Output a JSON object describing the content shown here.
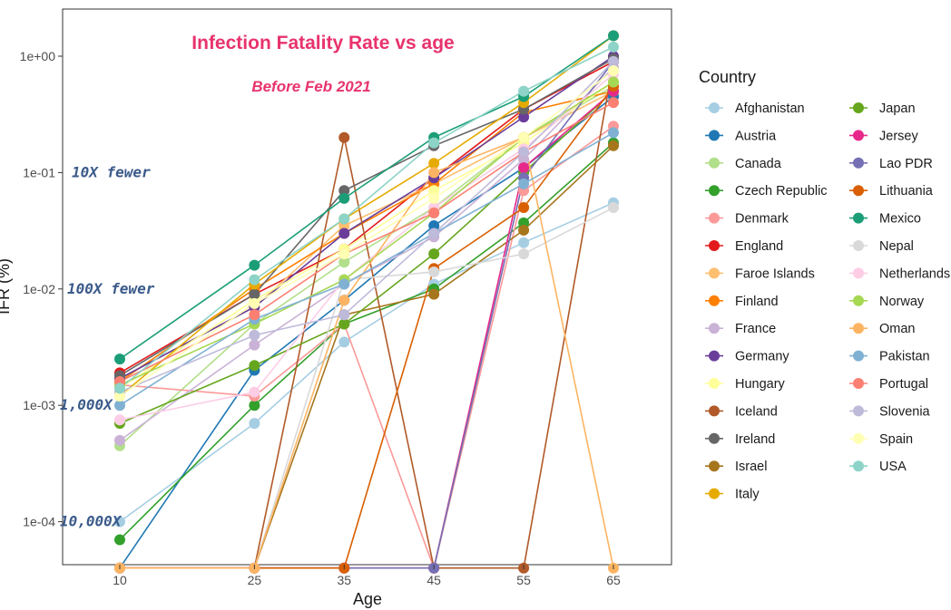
{
  "chart_data": {
    "type": "line",
    "title": "Infection Fatality Rate vs age",
    "subtitle": "Before Feb 2021",
    "xlabel": "Age",
    "ylabel": "IFR (%)",
    "x": [
      10,
      25,
      35,
      45,
      55,
      65
    ],
    "x_tick_labels": [
      "10",
      "25",
      "35",
      "45",
      "55",
      "65"
    ],
    "y_scale": "log10",
    "ylim": [
      4e-05,
      3
    ],
    "y_ticks": [
      0.0001,
      0.001,
      0.01,
      0.1,
      1
    ],
    "y_tick_labels": [
      "1e-04",
      "1e-03",
      "1e-02",
      "1e-01",
      "1e+00"
    ],
    "grid": false,
    "legend_title": "Country",
    "legend_position": "right",
    "annotations": [
      {
        "text": "10X fewer",
        "y": 0.1
      },
      {
        "text": "100X fewer",
        "y": 0.01
      },
      {
        "text": "1,000X",
        "y": 0.001
      },
      {
        "text": "10,000X",
        "y": 0.0001
      }
    ],
    "series": [
      {
        "name": "Afghanistan",
        "color": "#a6cee3",
        "values": [
          0.0001,
          0.0007,
          0.0035,
          0.011,
          0.025,
          0.055
        ]
      },
      {
        "name": "Austria",
        "color": "#1f78b4",
        "values": [
          4e-05,
          0.002,
          0.008,
          0.035,
          0.11,
          0.45
        ]
      },
      {
        "name": "Canada",
        "color": "#b2df8a",
        "values": [
          0.00045,
          0.005,
          0.017,
          0.05,
          0.2,
          0.55
        ]
      },
      {
        "name": "Czech Republic",
        "color": "#33a02c",
        "values": [
          7e-05,
          0.001,
          0.005,
          0.01,
          0.037,
          0.18
        ]
      },
      {
        "name": "Denmark",
        "color": "#fb9a99",
        "values": [
          0.0015,
          0.0012,
          0.005,
          4e-05,
          0.07,
          0.25
        ]
      },
      {
        "name": "England",
        "color": "#e31a1c",
        "values": [
          0.0019,
          0.009,
          0.022,
          0.09,
          0.35,
          0.9
        ]
      },
      {
        "name": "Faroe Islands",
        "color": "#fdbf6f",
        "values": [
          0.0017,
          0.007,
          0.035,
          0.08,
          0.2,
          0.5
        ]
      },
      {
        "name": "Finland",
        "color": "#ff7f00",
        "values": [
          0.0016,
          0.01,
          0.03,
          0.08,
          0.33,
          0.5
        ]
      },
      {
        "name": "France",
        "color": "#cab2d6",
        "values": [
          0.0005,
          0.0033,
          0.011,
          0.028,
          0.13,
          0.8
        ]
      },
      {
        "name": "Germany",
        "color": "#6a3d9a",
        "values": [
          0.0017,
          0.007,
          0.03,
          0.09,
          0.3,
          1.0
        ]
      },
      {
        "name": "Hungary",
        "color": "#ffff99",
        "values": [
          0.0014,
          0.008,
          0.022,
          0.07,
          0.18,
          0.6
        ]
      },
      {
        "name": "Iceland",
        "color": "#b15928",
        "values": [
          4e-05,
          4e-05,
          0.2,
          4e-05,
          4e-05,
          0.9
        ]
      },
      {
        "name": "Ireland",
        "color": "#666666",
        "values": [
          0.0018,
          0.009,
          0.07,
          0.17,
          0.35,
          0.95
        ]
      },
      {
        "name": "Israel",
        "color": "#a6761d",
        "values": [
          4e-05,
          4e-05,
          0.006,
          0.009,
          0.032,
          0.17
        ]
      },
      {
        "name": "Italy",
        "color": "#e6ab02",
        "values": [
          0.0012,
          0.011,
          0.04,
          0.12,
          0.4,
          1.5
        ]
      },
      {
        "name": "Japan",
        "color": "#66a61e",
        "values": [
          0.0007,
          0.0022,
          0.005,
          0.02,
          0.1,
          0.5
        ]
      },
      {
        "name": "Jersey",
        "color": "#e7298a",
        "values": [
          4e-05,
          4e-05,
          4e-05,
          4e-05,
          0.11,
          0.5
        ]
      },
      {
        "name": "Lao PDR",
        "color": "#7570b3",
        "values": [
          4e-05,
          4e-05,
          4e-05,
          4e-05,
          0.09,
          0.9
        ]
      },
      {
        "name": "Lithuania",
        "color": "#d95f02",
        "values": [
          4e-05,
          4e-05,
          4e-05,
          0.015,
          0.05,
          0.55
        ]
      },
      {
        "name": "Mexico",
        "color": "#1b9e77",
        "values": [
          0.0025,
          0.016,
          0.06,
          0.2,
          0.45,
          1.5
        ]
      },
      {
        "name": "Nepal",
        "color": "#d9d9d9",
        "values": [
          4e-05,
          4e-05,
          0.012,
          0.014,
          0.02,
          0.05
        ]
      },
      {
        "name": "Netherlands",
        "color": "#fccde5",
        "values": [
          0.00075,
          0.0013,
          0.012,
          0.05,
          0.16,
          0.7
        ]
      },
      {
        "name": "Norway",
        "color": "#a6d854",
        "values": [
          0.0015,
          0.005,
          0.012,
          0.045,
          0.2,
          0.6
        ]
      },
      {
        "name": "Oman",
        "color": "#fdb462",
        "values": [
          4e-05,
          4e-05,
          0.008,
          0.1,
          0.2,
          4e-05
        ]
      },
      {
        "name": "Pakistan",
        "color": "#80b1d3",
        "values": [
          0.001,
          0.0055,
          0.011,
          0.03,
          0.08,
          0.22
        ]
      },
      {
        "name": "Portugal",
        "color": "#fb8072",
        "values": [
          0.0016,
          0.006,
          0.02,
          0.045,
          0.15,
          0.4
        ]
      },
      {
        "name": "Slovenia",
        "color": "#bebada",
        "values": [
          0.0013,
          0.004,
          0.006,
          0.03,
          0.15,
          0.9
        ]
      },
      {
        "name": "Spain",
        "color": "#ffffb3",
        "values": [
          0.0012,
          0.0075,
          0.02,
          0.06,
          0.2,
          0.75
        ]
      },
      {
        "name": "USA",
        "color": "#8dd3c7",
        "values": [
          0.0014,
          0.012,
          0.04,
          0.18,
          0.5,
          1.2
        ]
      }
    ]
  }
}
